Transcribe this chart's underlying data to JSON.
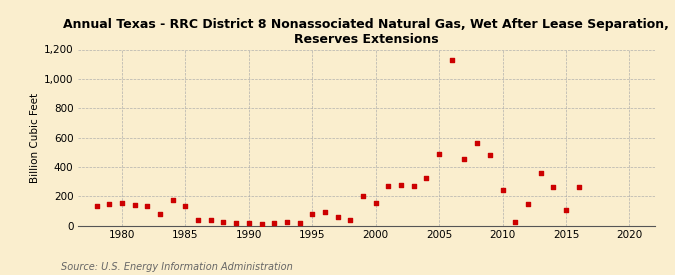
{
  "title": "Annual Texas - RRC District 8 Nonassociated Natural Gas, Wet After Lease Separation,\nReserves Extensions",
  "ylabel": "Billion Cubic Feet",
  "source": "Source: U.S. Energy Information Administration",
  "background_color": "#faeece",
  "marker_color": "#cc0000",
  "xlim": [
    1976.5,
    2022
  ],
  "ylim": [
    0,
    1200
  ],
  "xticks": [
    1980,
    1985,
    1990,
    1995,
    2000,
    2005,
    2010,
    2015,
    2020
  ],
  "yticks": [
    0,
    200,
    400,
    600,
    800,
    1000,
    1200
  ],
  "ytick_labels": [
    "0",
    "200",
    "400",
    "600",
    "800",
    "1,000",
    "1,200"
  ],
  "data": {
    "years": [
      1978,
      1979,
      1980,
      1981,
      1982,
      1983,
      1984,
      1985,
      1986,
      1987,
      1988,
      1989,
      1990,
      1991,
      1992,
      1993,
      1994,
      1995,
      1996,
      1997,
      1998,
      1999,
      2000,
      2001,
      2002,
      2003,
      2004,
      2005,
      2006,
      2007,
      2008,
      2009,
      2010,
      2011,
      2012,
      2013,
      2014,
      2015,
      2016
    ],
    "values": [
      130,
      150,
      155,
      140,
      130,
      80,
      175,
      130,
      40,
      35,
      25,
      20,
      15,
      10,
      20,
      25,
      20,
      80,
      90,
      55,
      40,
      200,
      155,
      270,
      275,
      270,
      325,
      490,
      1130,
      455,
      565,
      480,
      240,
      25,
      145,
      355,
      265,
      105,
      265
    ]
  }
}
